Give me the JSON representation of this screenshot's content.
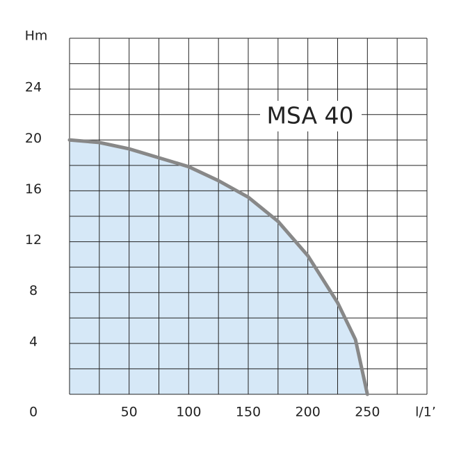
{
  "chart_data": {
    "type": "area",
    "title": "MSA 40",
    "y_label": "Hm",
    "x_label": "l/1’",
    "x": [
      0,
      25,
      50,
      75,
      100,
      125,
      150,
      175,
      200,
      225,
      240,
      250
    ],
    "series": [
      {
        "name": "MSA 40",
        "color": "#888888",
        "fill": "#d6e8f7",
        "values": [
          20,
          19.8,
          19.3,
          18.6,
          17.9,
          16.8,
          15.5,
          13.6,
          10.9,
          7.2,
          4.3,
          0
        ]
      }
    ],
    "xlim": [
      0,
      300
    ],
    "ylim": [
      0,
      28
    ],
    "xticks": [
      50,
      100,
      150,
      200,
      250
    ],
    "yticks": [
      0,
      4,
      8,
      12,
      16,
      20,
      24
    ],
    "xgrid": [
      0,
      25,
      50,
      75,
      100,
      125,
      150,
      175,
      200,
      225,
      250,
      275,
      300
    ],
    "ygrid": [
      0,
      2,
      4,
      6,
      8,
      10,
      12,
      14,
      16,
      18,
      20,
      22,
      24,
      26,
      28
    ],
    "grid": true
  }
}
